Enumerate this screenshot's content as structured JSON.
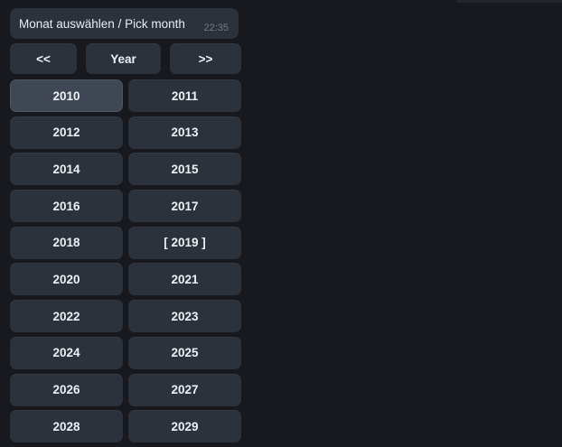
{
  "colors": {
    "background": "#17191e",
    "surface": "#2b323c",
    "surface_highlight": "#3f4754",
    "text": "#eef1f4",
    "timestamp_text": "#6f7a85"
  },
  "message": {
    "text": "Monat auswählen / Pick month",
    "time": "22:35"
  },
  "nav": {
    "prev_label": "<<",
    "mode_label": "Year",
    "next_label": ">>"
  },
  "years": [
    {
      "label": "2010",
      "highlighted": true
    },
    {
      "label": "2011"
    },
    {
      "label": "2012"
    },
    {
      "label": "2013"
    },
    {
      "label": "2014"
    },
    {
      "label": "2015"
    },
    {
      "label": "2016"
    },
    {
      "label": "2017"
    },
    {
      "label": "2018"
    },
    {
      "label": "[ 2019 ]",
      "selected": true
    },
    {
      "label": "2020"
    },
    {
      "label": "2021"
    },
    {
      "label": "2022"
    },
    {
      "label": "2023"
    },
    {
      "label": "2024"
    },
    {
      "label": "2025"
    },
    {
      "label": "2026"
    },
    {
      "label": "2027"
    },
    {
      "label": "2028"
    },
    {
      "label": "2029"
    }
  ]
}
